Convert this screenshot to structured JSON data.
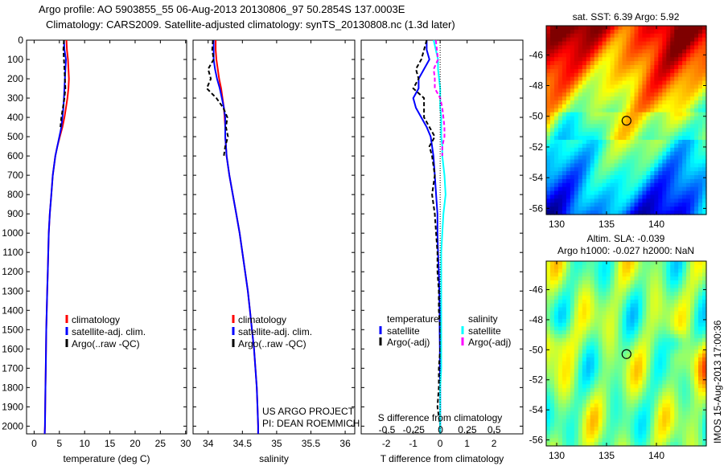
{
  "title_line1": "Argo profile: AO 5903855_55 06-Aug-2013 20130806_97 50.2854S 137.0003E",
  "title_line2": "Climatology: CARS2009. Satellite-adjusted climatology: synTS_20130808.nc (1.3d later)",
  "colors": {
    "climatology": "#ff0000",
    "satellite": "#0000ff",
    "argo": "#000000",
    "sal_satellite": "#00ffff",
    "sal_argo": "#ff00ff"
  },
  "chart_data": [
    {
      "type": "line",
      "id": "temperature",
      "xlabel": "temperature (deg C)",
      "ylabel": "",
      "xlim": [
        -1.5,
        30.2
      ],
      "ylim": [
        2040,
        0
      ],
      "xticks": [
        0,
        5,
        10,
        15,
        20,
        25,
        30
      ],
      "yticks": [
        0,
        100,
        200,
        300,
        400,
        500,
        600,
        700,
        800,
        900,
        1000,
        1100,
        1200,
        1300,
        1400,
        1500,
        1600,
        1700,
        1800,
        1900,
        2000
      ],
      "legend": [
        "climatology",
        "satellite-adj. clim.",
        "Argo(..raw -QC)"
      ],
      "depth": [
        0,
        50,
        100,
        150,
        200,
        250,
        300,
        350,
        400,
        450,
        500,
        550,
        600,
        700,
        800,
        900,
        1000,
        1100,
        1200,
        1300,
        1400,
        1500,
        1600,
        1700,
        1800,
        1900,
        2000,
        2040
      ],
      "series": [
        {
          "name": "climatology",
          "values": [
            6.4,
            6.5,
            6.7,
            6.8,
            6.9,
            6.8,
            6.6,
            6.3,
            6.0,
            5.6,
            5.1,
            4.6,
            4.2,
            3.7,
            3.4,
            3.1,
            2.9,
            2.8,
            2.7,
            2.6,
            2.5,
            2.4,
            2.35,
            2.3,
            2.25,
            2.2,
            2.15,
            2.1
          ]
        },
        {
          "name": "satellite-adj. clim.",
          "values": [
            5.9,
            6.0,
            6.3,
            6.2,
            6.1,
            6.0,
            5.9,
            5.8,
            5.6,
            5.4,
            5.0,
            4.6,
            4.2,
            3.7,
            3.4,
            3.1,
            2.9,
            2.8,
            2.7,
            2.6,
            2.5,
            2.4,
            2.35,
            2.3,
            2.25,
            2.2,
            2.15,
            2.1
          ]
        },
        {
          "name": "Argo(..raw -QC)",
          "values": [
            5.9,
            5.8,
            5.9,
            6.0,
            6.1,
            6.2,
            6.0,
            5.7,
            5.4,
            5.2,
            null,
            null,
            null,
            null,
            null,
            null,
            null,
            null,
            null,
            null,
            null,
            null,
            null,
            null,
            null,
            null,
            null,
            null
          ]
        }
      ]
    },
    {
      "type": "line",
      "id": "salinity",
      "xlabel": "salinity",
      "xlim": [
        33.78,
        36.14
      ],
      "ylim": [
        2040,
        0
      ],
      "xticks": [
        34,
        34.5,
        35,
        35.5,
        36
      ],
      "legend": [
        "climatology",
        "satellite-adj. clim.",
        "Argo(..raw -QC)"
      ],
      "annotation": [
        "US ARGO PROJECT",
        "PI: DEAN ROEMMICH"
      ],
      "depth": [
        0,
        50,
        100,
        150,
        200,
        250,
        300,
        350,
        400,
        450,
        500,
        550,
        600,
        700,
        800,
        900,
        1000,
        1100,
        1200,
        1300,
        1400,
        1500,
        1600,
        1700,
        1800,
        1900,
        2000,
        2040
      ],
      "series": [
        {
          "name": "climatology",
          "values": [
            34.11,
            34.11,
            34.12,
            34.14,
            34.16,
            34.19,
            34.21,
            34.23,
            34.24,
            34.25,
            34.25,
            34.26,
            34.27,
            34.31,
            34.36,
            34.41,
            34.46,
            34.5,
            34.54,
            34.58,
            34.61,
            34.64,
            34.67,
            34.69,
            34.71,
            34.72,
            34.73,
            34.73
          ]
        },
        {
          "name": "satellite-adj. clim.",
          "values": [
            34.08,
            34.08,
            34.08,
            34.1,
            34.13,
            34.17,
            34.2,
            34.23,
            34.25,
            34.25,
            34.25,
            34.26,
            34.27,
            34.31,
            34.36,
            34.41,
            34.46,
            34.5,
            34.54,
            34.58,
            34.61,
            34.64,
            34.67,
            34.69,
            34.71,
            34.72,
            34.73,
            34.73
          ]
        },
        {
          "name": "Argo(..raw -QC)",
          "values": [
            34.07,
            34.06,
            34.08,
            34.0,
            34.04,
            33.98,
            34.12,
            34.22,
            34.28,
            34.26,
            34.29,
            34.25,
            34.23,
            null,
            null,
            null,
            null,
            null,
            null,
            null,
            null,
            null,
            null,
            null,
            null,
            null,
            null,
            null
          ]
        }
      ]
    },
    {
      "type": "line",
      "id": "difference",
      "xlabel": "T difference from climatology",
      "xlabel_top": "S difference from climatology",
      "xlim": [
        -2.93,
        3.07
      ],
      "ylim": [
        2040,
        0
      ],
      "xticks": [
        -2,
        -1,
        0,
        1,
        2
      ],
      "xticks_top": [
        "-0.5",
        "-0.25",
        "0",
        "0.25",
        "0.5"
      ],
      "legend_temperature": [
        "temperature",
        "satellite",
        "Argo(-adj)"
      ],
      "legend_salinity": [
        "salinity",
        "satellite",
        "Argo(-adj)"
      ],
      "depth": [
        0,
        50,
        100,
        150,
        200,
        250,
        300,
        350,
        400,
        450,
        500,
        550,
        600,
        700,
        800,
        900,
        1000,
        1100,
        1200,
        1300,
        1400,
        1500,
        1600,
        1700,
        1800,
        1900,
        2000,
        2040
      ],
      "series": [
        {
          "name": "T satellite",
          "values": [
            -0.5,
            -0.5,
            -0.4,
            -0.6,
            -0.8,
            -0.8,
            -1.0,
            -0.9,
            -0.7,
            -0.5,
            -0.35,
            -0.3,
            -0.25,
            -0.2,
            -0.15,
            -0.1,
            -0.1,
            -0.08,
            -0.05,
            -0.03,
            -0.02,
            -0.02,
            -0.01,
            -0.01,
            0,
            0,
            0,
            0
          ]
        },
        {
          "name": "T Argo(-adj)",
          "values": [
            -0.5,
            -0.6,
            -0.7,
            -0.9,
            -0.8,
            -1.0,
            -0.6,
            -0.6,
            -0.6,
            -0.4,
            -0.2,
            -0.4,
            -0.3,
            -0.2,
            -0.3,
            -0.2,
            -0.15,
            -0.1,
            -0.1,
            -0.05,
            -0.05,
            0,
            0,
            -0.05,
            -0.05,
            -0.1,
            0,
            0
          ]
        },
        {
          "name": "S satellite",
          "values": [
            -0.06,
            -0.04,
            -0.02,
            -0.02,
            -0.01,
            0,
            0,
            0,
            0.01,
            0.01,
            0.01,
            0.02,
            0.02,
            0.04,
            0.05,
            0.03,
            0.02,
            0.01,
            0.01,
            0.01,
            0.01,
            0.01,
            0.01,
            0.01,
            0,
            0,
            0,
            0
          ]
        },
        {
          "name": "S Argo(-adj)",
          "values": [
            -0.04,
            -0.03,
            -0.02,
            -0.06,
            -0.05,
            -0.05,
            0.0,
            0.02,
            0.03,
            0.04,
            0.04,
            0.02,
            0.02,
            null,
            null,
            null,
            null,
            null,
            null,
            null,
            null,
            null,
            null,
            null,
            null,
            null,
            null,
            null
          ]
        }
      ]
    },
    {
      "type": "heatmap",
      "id": "sst_map",
      "title": "sat. SST: 6.39 Argo: 5.92",
      "xlim": [
        128.95,
        145
      ],
      "ylim": [
        -56.4,
        -44.1
      ],
      "xticks": [
        130,
        135,
        140
      ],
      "yticks": [
        -46,
        -48,
        -50,
        -52,
        -54,
        -56
      ],
      "marker": {
        "lon": 137.0,
        "lat": -50.29
      }
    },
    {
      "type": "heatmap",
      "id": "sla_map",
      "title": [
        "Altim. SLA: -0.039",
        "Argo h1000: -0.027 h2000: NaN"
      ],
      "xlim": [
        128.95,
        145
      ],
      "ylim": [
        -56.4,
        -44.1
      ],
      "xticks": [
        130,
        135,
        140
      ],
      "yticks": [
        -46,
        -48,
        -50,
        -52,
        -54,
        -56
      ],
      "marker": {
        "lon": 137.0,
        "lat": -50.29
      },
      "side_label": "IMOS 15-Aug-2013 17:00:36"
    }
  ]
}
